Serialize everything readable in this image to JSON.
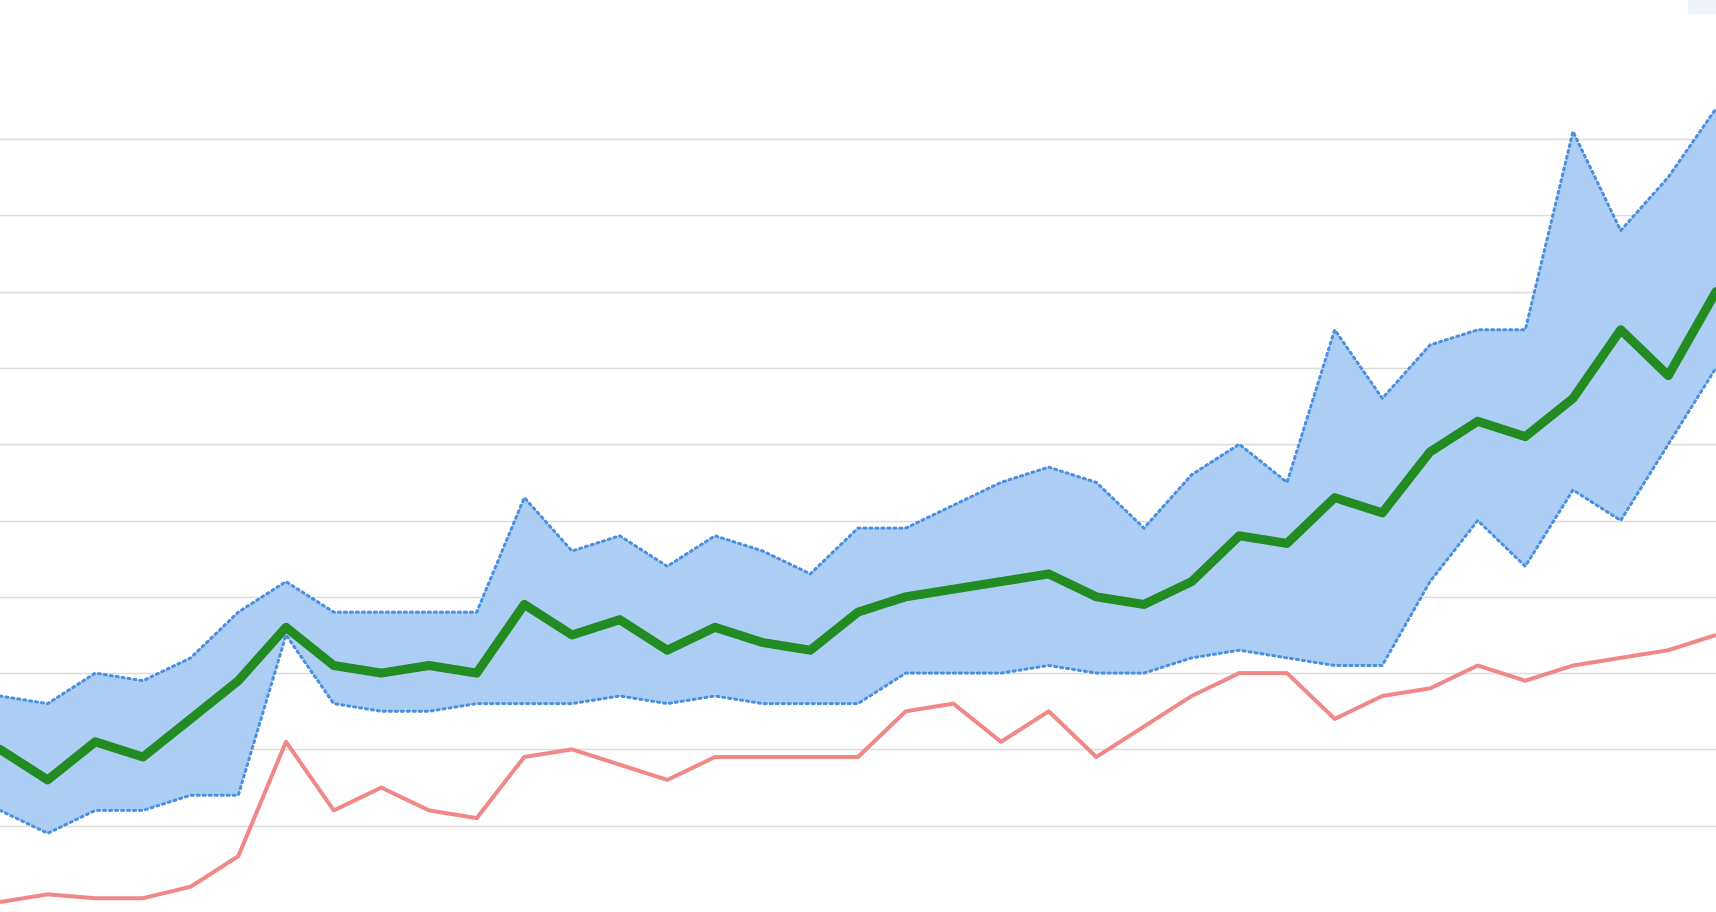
{
  "colors": {
    "band_fill": "#a9cbf3",
    "band_edge": "#4a8fe0",
    "main_line": "#228b22",
    "secondary_line": "#f08888",
    "grid": "#dcdcdc"
  },
  "chart_data": {
    "type": "line",
    "title": "",
    "xlabel": "",
    "ylabel": "",
    "grid": true,
    "legend": "none",
    "ylim": [
      0,
      10.8
    ],
    "x": [
      0,
      1,
      2,
      3,
      4,
      5,
      6,
      7,
      8,
      9,
      10,
      11,
      12,
      13,
      14,
      15,
      16,
      17,
      18,
      19,
      20,
      21,
      22,
      23,
      24,
      25,
      26,
      27,
      28,
      29,
      30,
      31,
      32,
      33,
      34,
      35,
      36
    ],
    "series": [
      {
        "role": "band_upper",
        "values": [
          2.7,
          2.6,
          3.0,
          2.9,
          3.2,
          3.8,
          4.2,
          3.8,
          3.8,
          3.8,
          3.8,
          5.3,
          4.6,
          4.8,
          4.4,
          4.8,
          4.6,
          4.3,
          4.9,
          4.9,
          5.2,
          5.5,
          5.7,
          5.5,
          4.9,
          5.6,
          6.0,
          5.5,
          7.5,
          6.6,
          7.3,
          7.5,
          7.5,
          10.1,
          8.8,
          9.5,
          10.4
        ]
      },
      {
        "role": "band_lower",
        "values": [
          1.2,
          0.9,
          1.2,
          1.2,
          1.4,
          1.4,
          3.5,
          2.6,
          2.5,
          2.5,
          2.6,
          2.6,
          2.6,
          2.7,
          2.6,
          2.7,
          2.6,
          2.6,
          2.6,
          3.0,
          3.0,
          3.0,
          3.1,
          3.0,
          3.0,
          3.2,
          3.3,
          3.2,
          3.1,
          3.1,
          4.2,
          5.0,
          4.4,
          5.4,
          5.0,
          6.0,
          7.0
        ]
      },
      {
        "role": "main",
        "values": [
          2.0,
          1.6,
          2.1,
          1.9,
          2.4,
          2.9,
          3.6,
          3.1,
          3.0,
          3.1,
          3.0,
          3.9,
          3.5,
          3.7,
          3.3,
          3.6,
          3.4,
          3.3,
          3.8,
          4.0,
          4.1,
          4.2,
          4.3,
          4.0,
          3.9,
          4.2,
          4.8,
          4.7,
          5.3,
          5.1,
          5.9,
          6.3,
          6.1,
          6.6,
          7.5,
          6.9,
          8.0
        ]
      },
      {
        "role": "secondary",
        "values": [
          0.0,
          0.1,
          0.05,
          0.05,
          0.2,
          0.6,
          2.1,
          1.2,
          1.5,
          1.2,
          1.1,
          1.9,
          2.0,
          1.8,
          1.6,
          1.9,
          1.9,
          1.9,
          1.9,
          2.5,
          2.6,
          2.1,
          2.5,
          1.9,
          2.3,
          2.7,
          3.0,
          3.0,
          2.4,
          2.7,
          2.8,
          3.1,
          2.9,
          3.1,
          3.2,
          3.3,
          3.5
        ]
      }
    ]
  }
}
